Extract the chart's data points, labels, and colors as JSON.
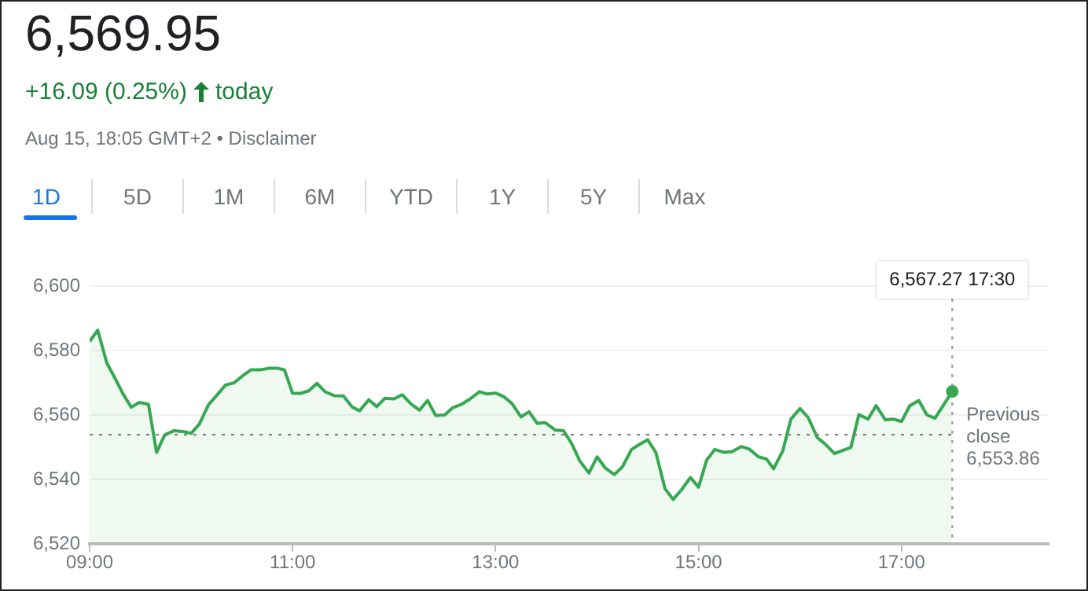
{
  "chart_data": {
    "type": "area",
    "title": "6,569.95",
    "subtitle": "+16.09 (0.25%)",
    "annotations": [
      "today",
      "Aug 15, 18:05 GMT+2 • Disclaimer",
      "1D",
      "5D",
      "1M",
      "6M",
      "YTD",
      "1Y",
      "5Y",
      "Max",
      "6,567.27 17:30"
    ],
    "x": [
      9.0,
      9.08,
      9.17,
      9.24,
      9.33,
      9.41,
      9.49,
      9.58,
      9.66,
      9.74,
      9.83,
      9.93,
      10.0,
      10.08,
      10.17,
      10.25,
      10.34,
      10.42,
      10.51,
      10.59,
      10.68,
      10.77,
      10.85,
      10.92,
      11.0,
      11.08,
      11.16,
      11.24,
      11.32,
      11.41,
      11.5,
      11.59,
      11.66,
      11.75,
      11.83,
      11.91,
      12.0,
      12.08,
      12.17,
      12.25,
      12.33,
      12.41,
      12.5,
      12.58,
      12.67,
      12.75,
      12.84,
      12.92,
      13.0,
      13.08,
      13.16,
      13.25,
      13.33,
      13.41,
      13.49,
      13.59,
      13.67,
      13.75,
      13.83,
      13.92,
      14.0,
      14.08,
      14.17,
      14.25,
      14.34,
      14.42,
      14.5,
      14.58,
      14.67,
      14.75,
      14.83,
      14.92,
      15.0,
      15.08,
      15.16,
      15.25,
      15.33,
      15.42,
      15.5,
      15.59,
      15.67,
      15.74,
      15.83,
      15.91,
      16.0,
      16.08,
      16.17,
      16.25,
      16.34,
      16.42,
      16.5,
      16.58,
      16.67,
      16.75,
      16.84,
      16.92,
      17.0,
      17.08,
      17.17,
      17.25,
      17.33,
      17.42,
      17.5
    ],
    "series": [
      {
        "color": "#36a852",
        "values": [
          6582.8,
          6586.3,
          6576.1,
          6572.0,
          6566.5,
          6562.4,
          6563.9,
          6563.3,
          6548.4,
          6553.8,
          6555.1,
          6554.8,
          6554.3,
          6557.1,
          6563.1,
          6566.0,
          6569.3,
          6569.9,
          6572.2,
          6574.0,
          6574.0,
          6574.5,
          6574.5,
          6574.0,
          6566.7,
          6566.7,
          6567.5,
          6569.8,
          6567.2,
          6566.0,
          6565.9,
          6562.4,
          6561.3,
          6564.7,
          6562.6,
          6565.2,
          6565.0,
          6566.3,
          6563.3,
          6561.5,
          6564.5,
          6559.8,
          6560.0,
          6562.3,
          6563.4,
          6565.0,
          6567.2,
          6566.5,
          6566.8,
          6565.7,
          6563.6,
          6559.4,
          6561.0,
          6557.4,
          6557.6,
          6555.3,
          6555.1,
          6551.1,
          6545.7,
          6542.0,
          6547.0,
          6543.6,
          6541.5,
          6543.9,
          6549.3,
          6550.9,
          6552.3,
          6548.3,
          6537.1,
          6533.8,
          6536.7,
          6540.6,
          6537.6,
          6546.0,
          6549.3,
          6548.4,
          6548.6,
          6550.2,
          6549.4,
          6547.0,
          6546.3,
          6543.3,
          6548.9,
          6558.7,
          6562.0,
          6559.2,
          6553.0,
          6550.9,
          6548.0,
          6549.0,
          6549.9,
          6560.1,
          6558.7,
          6562.9,
          6558.5,
          6558.7,
          6558.0,
          6562.8,
          6564.5,
          6560.0,
          6559.0,
          6563.4,
          6567.3
        ]
      }
    ],
    "xlim": [
      9,
      18.45
    ],
    "xticks": [
      {
        "value": 9,
        "label": "09:00"
      },
      {
        "value": 11,
        "label": "11:00"
      },
      {
        "value": 13,
        "label": "13:00"
      },
      {
        "value": 15,
        "label": "15:00"
      },
      {
        "value": 17,
        "label": "17:00"
      }
    ],
    "ylim": [
      6520,
      6600
    ],
    "yticks": [
      {
        "value": 6520,
        "label": "6,520"
      },
      {
        "value": 6540,
        "label": "6,540"
      },
      {
        "value": 6560,
        "label": "6,560"
      },
      {
        "value": 6580,
        "label": "6,580"
      },
      {
        "value": 6600,
        "label": "6,600"
      }
    ],
    "ref_lines": [
      {
        "axis": "x",
        "value": 17.5,
        "color": "#9aa0a6",
        "line_style": "dotted"
      },
      {
        "axis": "y",
        "value": 6553.86,
        "label": "Previous close 6,553.86",
        "color": "#808080",
        "line_style": "dotted"
      }
    ],
    "grid": "y",
    "legend": false,
    "marker": "none",
    "line_style": "solid"
  }
}
